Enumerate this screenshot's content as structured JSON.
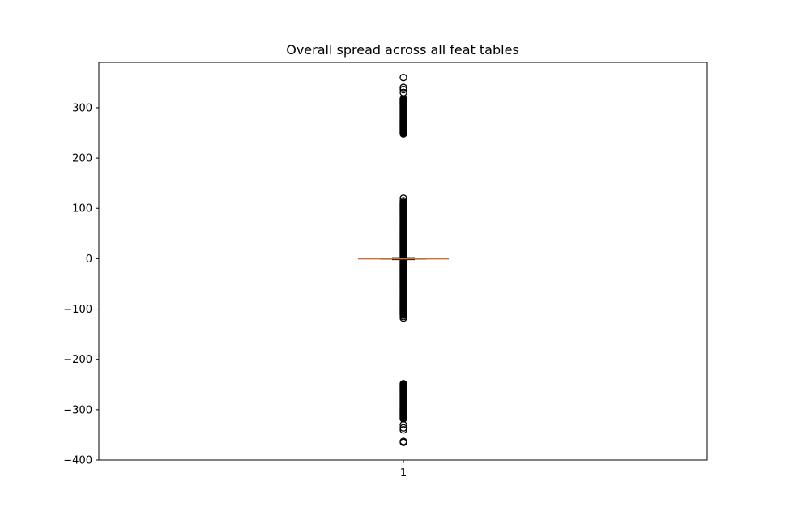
{
  "chart_data": {
    "type": "boxplot",
    "title": "Overall spread across all feat tables",
    "xlabel": "",
    "ylabel": "",
    "categories": [
      "1"
    ],
    "yticks": [
      -400,
      -300,
      -200,
      -100,
      0,
      100,
      200,
      300
    ],
    "ytick_labels": [
      "−400",
      "−300",
      "−200",
      "−100",
      "0",
      "100",
      "200",
      "300"
    ],
    "ylim": [
      -400,
      390
    ],
    "grid": false,
    "legend": "none",
    "box": {
      "q1": -1,
      "median": 0,
      "q3": 1,
      "whisker_low": -2,
      "whisker_high": 2
    },
    "outlier_bands": [
      {
        "from": 248,
        "to": 318
      },
      {
        "from": 4,
        "to": 112
      },
      {
        "from": -112,
        "to": -4
      },
      {
        "from": -318,
        "to": -248
      }
    ],
    "outliers": [
      360,
      340,
      336,
      330,
      120,
      115,
      -115,
      -118,
      -330,
      -336,
      -340,
      -363,
      -365
    ],
    "colors": {
      "median": "#c87137",
      "box": "#000000",
      "outlier": "#000000"
    }
  }
}
